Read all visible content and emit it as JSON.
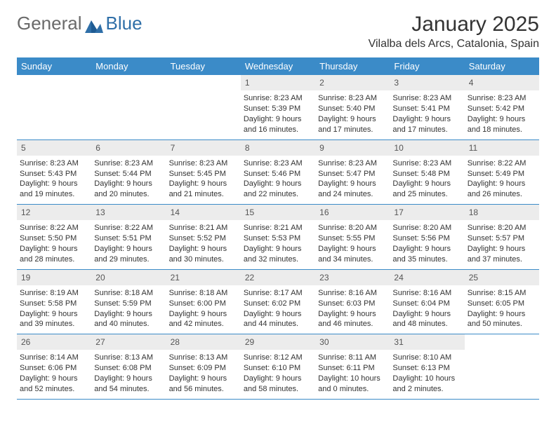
{
  "logo": {
    "text1": "General",
    "text2": "Blue"
  },
  "title": "January 2025",
  "location": "Vilalba dels Arcs, Catalonia, Spain",
  "colors": {
    "header_bg": "#3b8bc8",
    "header_fg": "#ffffff",
    "daynum_bg": "#ececec",
    "text": "#333333",
    "rule": "#3b8bc8"
  },
  "days_of_week": [
    "Sunday",
    "Monday",
    "Tuesday",
    "Wednesday",
    "Thursday",
    "Friday",
    "Saturday"
  ],
  "weeks": [
    [
      {
        "blank": true
      },
      {
        "blank": true
      },
      {
        "blank": true
      },
      {
        "n": "1",
        "sunrise": "8:23 AM",
        "sunset": "5:39 PM",
        "dl1": "Daylight: 9 hours",
        "dl2": "and 16 minutes."
      },
      {
        "n": "2",
        "sunrise": "8:23 AM",
        "sunset": "5:40 PM",
        "dl1": "Daylight: 9 hours",
        "dl2": "and 17 minutes."
      },
      {
        "n": "3",
        "sunrise": "8:23 AM",
        "sunset": "5:41 PM",
        "dl1": "Daylight: 9 hours",
        "dl2": "and 17 minutes."
      },
      {
        "n": "4",
        "sunrise": "8:23 AM",
        "sunset": "5:42 PM",
        "dl1": "Daylight: 9 hours",
        "dl2": "and 18 minutes."
      }
    ],
    [
      {
        "n": "5",
        "sunrise": "8:23 AM",
        "sunset": "5:43 PM",
        "dl1": "Daylight: 9 hours",
        "dl2": "and 19 minutes."
      },
      {
        "n": "6",
        "sunrise": "8:23 AM",
        "sunset": "5:44 PM",
        "dl1": "Daylight: 9 hours",
        "dl2": "and 20 minutes."
      },
      {
        "n": "7",
        "sunrise": "8:23 AM",
        "sunset": "5:45 PM",
        "dl1": "Daylight: 9 hours",
        "dl2": "and 21 minutes."
      },
      {
        "n": "8",
        "sunrise": "8:23 AM",
        "sunset": "5:46 PM",
        "dl1": "Daylight: 9 hours",
        "dl2": "and 22 minutes."
      },
      {
        "n": "9",
        "sunrise": "8:23 AM",
        "sunset": "5:47 PM",
        "dl1": "Daylight: 9 hours",
        "dl2": "and 24 minutes."
      },
      {
        "n": "10",
        "sunrise": "8:23 AM",
        "sunset": "5:48 PM",
        "dl1": "Daylight: 9 hours",
        "dl2": "and 25 minutes."
      },
      {
        "n": "11",
        "sunrise": "8:22 AM",
        "sunset": "5:49 PM",
        "dl1": "Daylight: 9 hours",
        "dl2": "and 26 minutes."
      }
    ],
    [
      {
        "n": "12",
        "sunrise": "8:22 AM",
        "sunset": "5:50 PM",
        "dl1": "Daylight: 9 hours",
        "dl2": "and 28 minutes."
      },
      {
        "n": "13",
        "sunrise": "8:22 AM",
        "sunset": "5:51 PM",
        "dl1": "Daylight: 9 hours",
        "dl2": "and 29 minutes."
      },
      {
        "n": "14",
        "sunrise": "8:21 AM",
        "sunset": "5:52 PM",
        "dl1": "Daylight: 9 hours",
        "dl2": "and 30 minutes."
      },
      {
        "n": "15",
        "sunrise": "8:21 AM",
        "sunset": "5:53 PM",
        "dl1": "Daylight: 9 hours",
        "dl2": "and 32 minutes."
      },
      {
        "n": "16",
        "sunrise": "8:20 AM",
        "sunset": "5:55 PM",
        "dl1": "Daylight: 9 hours",
        "dl2": "and 34 minutes."
      },
      {
        "n": "17",
        "sunrise": "8:20 AM",
        "sunset": "5:56 PM",
        "dl1": "Daylight: 9 hours",
        "dl2": "and 35 minutes."
      },
      {
        "n": "18",
        "sunrise": "8:20 AM",
        "sunset": "5:57 PM",
        "dl1": "Daylight: 9 hours",
        "dl2": "and 37 minutes."
      }
    ],
    [
      {
        "n": "19",
        "sunrise": "8:19 AM",
        "sunset": "5:58 PM",
        "dl1": "Daylight: 9 hours",
        "dl2": "and 39 minutes."
      },
      {
        "n": "20",
        "sunrise": "8:18 AM",
        "sunset": "5:59 PM",
        "dl1": "Daylight: 9 hours",
        "dl2": "and 40 minutes."
      },
      {
        "n": "21",
        "sunrise": "8:18 AM",
        "sunset": "6:00 PM",
        "dl1": "Daylight: 9 hours",
        "dl2": "and 42 minutes."
      },
      {
        "n": "22",
        "sunrise": "8:17 AM",
        "sunset": "6:02 PM",
        "dl1": "Daylight: 9 hours",
        "dl2": "and 44 minutes."
      },
      {
        "n": "23",
        "sunrise": "8:16 AM",
        "sunset": "6:03 PM",
        "dl1": "Daylight: 9 hours",
        "dl2": "and 46 minutes."
      },
      {
        "n": "24",
        "sunrise": "8:16 AM",
        "sunset": "6:04 PM",
        "dl1": "Daylight: 9 hours",
        "dl2": "and 48 minutes."
      },
      {
        "n": "25",
        "sunrise": "8:15 AM",
        "sunset": "6:05 PM",
        "dl1": "Daylight: 9 hours",
        "dl2": "and 50 minutes."
      }
    ],
    [
      {
        "n": "26",
        "sunrise": "8:14 AM",
        "sunset": "6:06 PM",
        "dl1": "Daylight: 9 hours",
        "dl2": "and 52 minutes."
      },
      {
        "n": "27",
        "sunrise": "8:13 AM",
        "sunset": "6:08 PM",
        "dl1": "Daylight: 9 hours",
        "dl2": "and 54 minutes."
      },
      {
        "n": "28",
        "sunrise": "8:13 AM",
        "sunset": "6:09 PM",
        "dl1": "Daylight: 9 hours",
        "dl2": "and 56 minutes."
      },
      {
        "n": "29",
        "sunrise": "8:12 AM",
        "sunset": "6:10 PM",
        "dl1": "Daylight: 9 hours",
        "dl2": "and 58 minutes."
      },
      {
        "n": "30",
        "sunrise": "8:11 AM",
        "sunset": "6:11 PM",
        "dl1": "Daylight: 10 hours",
        "dl2": "and 0 minutes."
      },
      {
        "n": "31",
        "sunrise": "8:10 AM",
        "sunset": "6:13 PM",
        "dl1": "Daylight: 10 hours",
        "dl2": "and 2 minutes."
      },
      {
        "blank": true
      }
    ]
  ],
  "labels": {
    "sunrise": "Sunrise: ",
    "sunset": "Sunset: "
  }
}
